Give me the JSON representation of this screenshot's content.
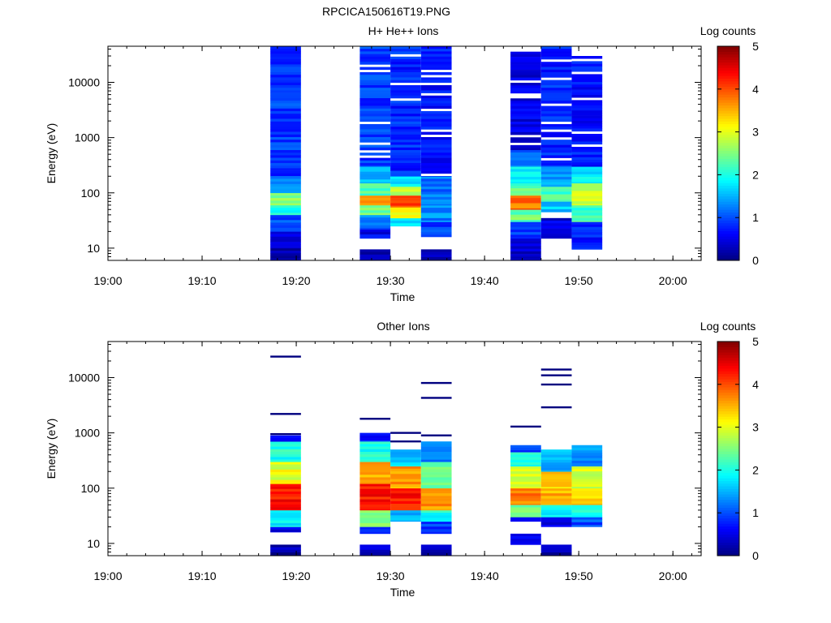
{
  "figure_title": "RPCICA150616T19.PNG",
  "colorbar": {
    "label": "Log counts",
    "ticks": [
      "0",
      "1",
      "2",
      "3",
      "4",
      "5"
    ],
    "range": [
      0,
      5
    ],
    "colormap": [
      "#00007f",
      "#0000ff",
      "#007fff",
      "#00ffff",
      "#7fff7f",
      "#ffff00",
      "#ff7f00",
      "#ff0000",
      "#7f0000"
    ]
  },
  "chart_data": [
    {
      "type": "heatmap",
      "title": "H+ He++ Ions",
      "xlabel": "Time",
      "ylabel": "Energy (eV)",
      "y_scale": "log",
      "ylim": [
        6,
        45000
      ],
      "xlim": [
        "19:00",
        "20:03"
      ],
      "xticks": [
        "19:00",
        "19:10",
        "19:20",
        "19:30",
        "19:40",
        "19:50",
        "20:00"
      ],
      "yticks": [
        "10",
        "100",
        "1000",
        "10000"
      ],
      "blocks": [
        {
          "t_start": "19:17:15",
          "t_end": "19:20:30",
          "profile": [
            [
              6,
              10,
              0.2
            ],
            [
              10,
              20,
              0.5
            ],
            [
              20,
              40,
              1.0
            ],
            [
              40,
              60,
              2.0
            ],
            [
              60,
              100,
              2.6
            ],
            [
              100,
              200,
              1.3
            ],
            [
              200,
              45000,
              0.9
            ]
          ]
        },
        {
          "t_start": "19:26:45",
          "t_end": "19:30:00",
          "profile": [
            [
              6,
              9.5,
              0.3
            ],
            [
              15,
              22,
              0.6
            ],
            [
              22,
              40,
              1.2
            ],
            [
              40,
              60,
              2.4
            ],
            [
              60,
              90,
              3.8
            ],
            [
              90,
              150,
              2.3
            ],
            [
              150,
              300,
              1.6
            ],
            [
              300,
              45000,
              0.9
            ]
          ]
        },
        {
          "t_start": "19:30:00",
          "t_end": "19:33:15",
          "profile": [
            [
              25,
              35,
              1.8
            ],
            [
              35,
              55,
              3.0
            ],
            [
              55,
              90,
              4.0
            ],
            [
              90,
              130,
              2.8
            ],
            [
              130,
              200,
              1.8
            ],
            [
              200,
              45000,
              0.8
            ]
          ]
        },
        {
          "t_start": "19:33:15",
          "t_end": "19:36:30",
          "profile": [
            [
              6,
              9.5,
              0.3
            ],
            [
              16,
              30,
              0.9
            ],
            [
              30,
              60,
              1.3
            ],
            [
              60,
              200,
              1.2
            ],
            [
              200,
              45000,
              0.7
            ]
          ]
        },
        {
          "t_start": "19:42:45",
          "t_end": "19:46:00",
          "profile": [
            [
              6,
              15,
              0.4
            ],
            [
              15,
              30,
              0.9
            ],
            [
              30,
              50,
              2.4
            ],
            [
              50,
              90,
              3.8
            ],
            [
              90,
              150,
              2.3
            ],
            [
              150,
              300,
              1.8
            ],
            [
              300,
              600,
              1.1
            ],
            [
              600,
              40000,
              0.5
            ]
          ]
        },
        {
          "t_start": "19:46:00",
          "t_end": "19:49:15",
          "profile": [
            [
              15,
              35,
              0.5
            ],
            [
              45,
              70,
              1.6
            ],
            [
              70,
              130,
              2.2
            ],
            [
              130,
              300,
              1.4
            ],
            [
              300,
              45000,
              0.8
            ]
          ]
        },
        {
          "t_start": "19:49:15",
          "t_end": "19:52:30",
          "profile": [
            [
              9.5,
              30,
              0.8
            ],
            [
              30,
              60,
              2.2
            ],
            [
              60,
              150,
              2.8
            ],
            [
              150,
              300,
              1.8
            ],
            [
              300,
              30000,
              0.7
            ]
          ]
        }
      ]
    },
    {
      "type": "heatmap",
      "title": "Other Ions",
      "xlabel": "Time",
      "ylabel": "Energy (eV)",
      "y_scale": "log",
      "ylim": [
        6,
        45000
      ],
      "xlim": [
        "19:00",
        "20:03"
      ],
      "xticks": [
        "19:00",
        "19:10",
        "19:20",
        "19:30",
        "19:40",
        "19:50",
        "20:00"
      ],
      "yticks": [
        "10",
        "100",
        "1000",
        "10000"
      ],
      "blocks": [
        {
          "t_start": "19:17:15",
          "t_end": "19:20:30",
          "profile": [
            [
              6,
              9.5,
              0.2
            ],
            [
              16,
              20,
              0.5
            ],
            [
              20,
              40,
              1.8
            ],
            [
              40,
              120,
              4.3
            ],
            [
              120,
              300,
              3.0
            ],
            [
              300,
              700,
              2.0
            ],
            [
              700,
              900,
              0.7
            ]
          ],
          "lines": [
            24000,
            2200,
            950
          ]
        },
        {
          "t_start": "19:26:45",
          "t_end": "19:30:00",
          "profile": [
            [
              6,
              9.5,
              0.3
            ],
            [
              15,
              20,
              0.7
            ],
            [
              20,
              40,
              2.6
            ],
            [
              40,
              120,
              4.3
            ],
            [
              120,
              300,
              3.5
            ],
            [
              300,
              700,
              2.0
            ],
            [
              700,
              1000,
              0.8
            ]
          ],
          "lines": [
            1800
          ]
        },
        {
          "t_start": "19:30:00",
          "t_end": "19:33:15",
          "profile": [
            [
              25,
              40,
              1.5
            ],
            [
              40,
              100,
              4.3
            ],
            [
              100,
              250,
              3.6
            ],
            [
              250,
              500,
              1.6
            ]
          ],
          "lines": [
            1000,
            700
          ]
        },
        {
          "t_start": "19:33:15",
          "t_end": "19:36:30",
          "profile": [
            [
              6,
              9.5,
              0.2
            ],
            [
              15,
              25,
              0.9
            ],
            [
              25,
              40,
              2.0
            ],
            [
              40,
              100,
              3.6
            ],
            [
              100,
              300,
              2.5
            ],
            [
              300,
              700,
              1.2
            ]
          ],
          "lines": [
            8000,
            4300,
            900
          ]
        },
        {
          "t_start": "19:42:45",
          "t_end": "19:46:00",
          "profile": [
            [
              9.5,
              15,
              0.6
            ],
            [
              25,
              30,
              0.6
            ],
            [
              30,
              50,
              2.4
            ],
            [
              50,
              100,
              3.8
            ],
            [
              100,
              250,
              3.0
            ],
            [
              250,
              450,
              2.0
            ],
            [
              450,
              600,
              1.0
            ]
          ],
          "lines": [
            1300
          ]
        },
        {
          "t_start": "19:46:00",
          "t_end": "19:49:15",
          "profile": [
            [
              6,
              9.5,
              0.2
            ],
            [
              20,
              30,
              0.6
            ],
            [
              30,
              50,
              1.8
            ],
            [
              50,
              100,
              3.5
            ],
            [
              100,
              200,
              3.3
            ],
            [
              200,
              500,
              1.5
            ]
          ],
          "lines": [
            14000,
            11000,
            7500,
            2900
          ]
        },
        {
          "t_start": "19:49:15",
          "t_end": "19:52:30",
          "profile": [
            [
              20,
              30,
              1.0
            ],
            [
              30,
              50,
              1.9
            ],
            [
              50,
              100,
              3.4
            ],
            [
              100,
              250,
              2.9
            ],
            [
              250,
              600,
              1.3
            ]
          ],
          "lines": []
        }
      ]
    }
  ]
}
